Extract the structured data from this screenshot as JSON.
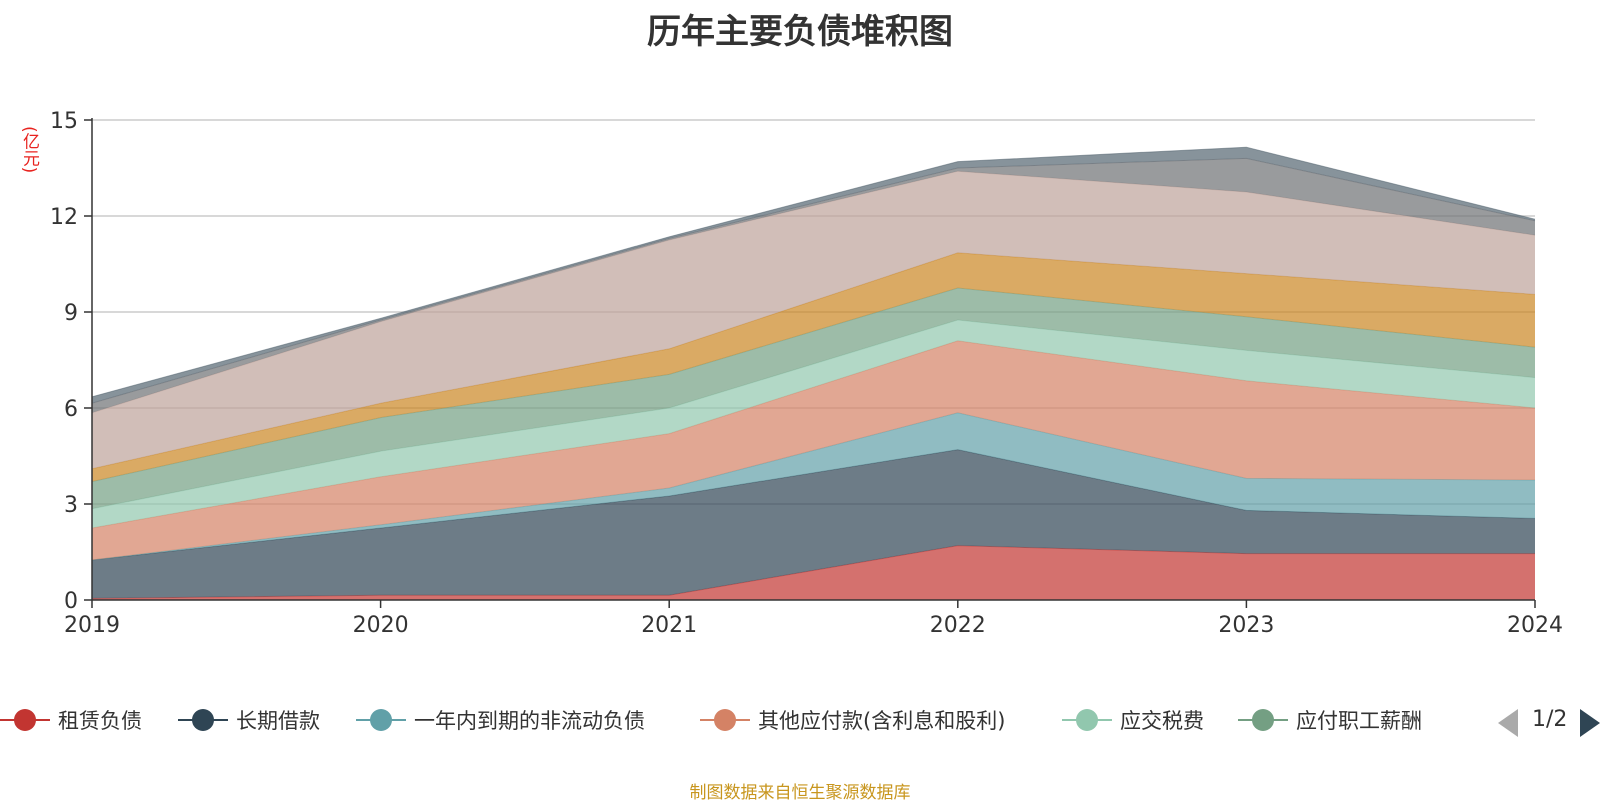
{
  "chart_data": {
    "type": "area",
    "stacked": true,
    "title": "历年主要负债堆积图",
    "unit_label": "(亿元)",
    "x": [
      "2019",
      "2020",
      "2021",
      "2022",
      "2023",
      "2024"
    ],
    "ylim": [
      0,
      15
    ],
    "yticks": [
      "0",
      "3",
      "6",
      "9",
      "12",
      "15"
    ],
    "grid": true,
    "legend_position": "bottom",
    "series": [
      {
        "name": "租赁负债",
        "color": "#c23531",
        "values": [
          0.05,
          0.15,
          0.15,
          1.7,
          1.45,
          1.45
        ]
      },
      {
        "name": "长期借款",
        "color": "#2f4554",
        "values": [
          1.2,
          2.1,
          3.1,
          3.0,
          1.35,
          1.1
        ]
      },
      {
        "name": "一年内到期的非流动负债",
        "color": "#61a0a8",
        "values": [
          0.0,
          0.1,
          0.25,
          1.15,
          1.0,
          1.2
        ]
      },
      {
        "name": "其他应付款(含利息和股利)",
        "color": "#d48265",
        "values": [
          1.0,
          1.5,
          1.7,
          2.25,
          3.05,
          2.25
        ]
      },
      {
        "name": "应交税费",
        "color": "#91c7ae",
        "values": [
          0.6,
          0.8,
          0.8,
          0.65,
          0.95,
          0.95
        ]
      },
      {
        "name": "应付职工薪酬",
        "color": "#749f83",
        "values": [
          0.85,
          1.05,
          1.05,
          1.0,
          1.05,
          0.95
        ]
      },
      {
        "name": "",
        "color": "#ca8622",
        "values": [
          0.4,
          0.45,
          0.8,
          1.1,
          1.35,
          1.65
        ]
      },
      {
        "name": "",
        "color": "#bda29a",
        "values": [
          1.75,
          2.55,
          3.4,
          2.55,
          2.55,
          1.85
        ]
      },
      {
        "name": "",
        "color": "#6e7074",
        "values": [
          0.3,
          0.05,
          0.05,
          0.1,
          1.05,
          0.45
        ]
      },
      {
        "name": "",
        "color": "#546570",
        "values": [
          0.2,
          0.05,
          0.05,
          0.2,
          0.35,
          0.05
        ]
      }
    ]
  },
  "legend": {
    "page_indicator": "1/2"
  },
  "source_note": "制图数据来自恒生聚源数据库"
}
